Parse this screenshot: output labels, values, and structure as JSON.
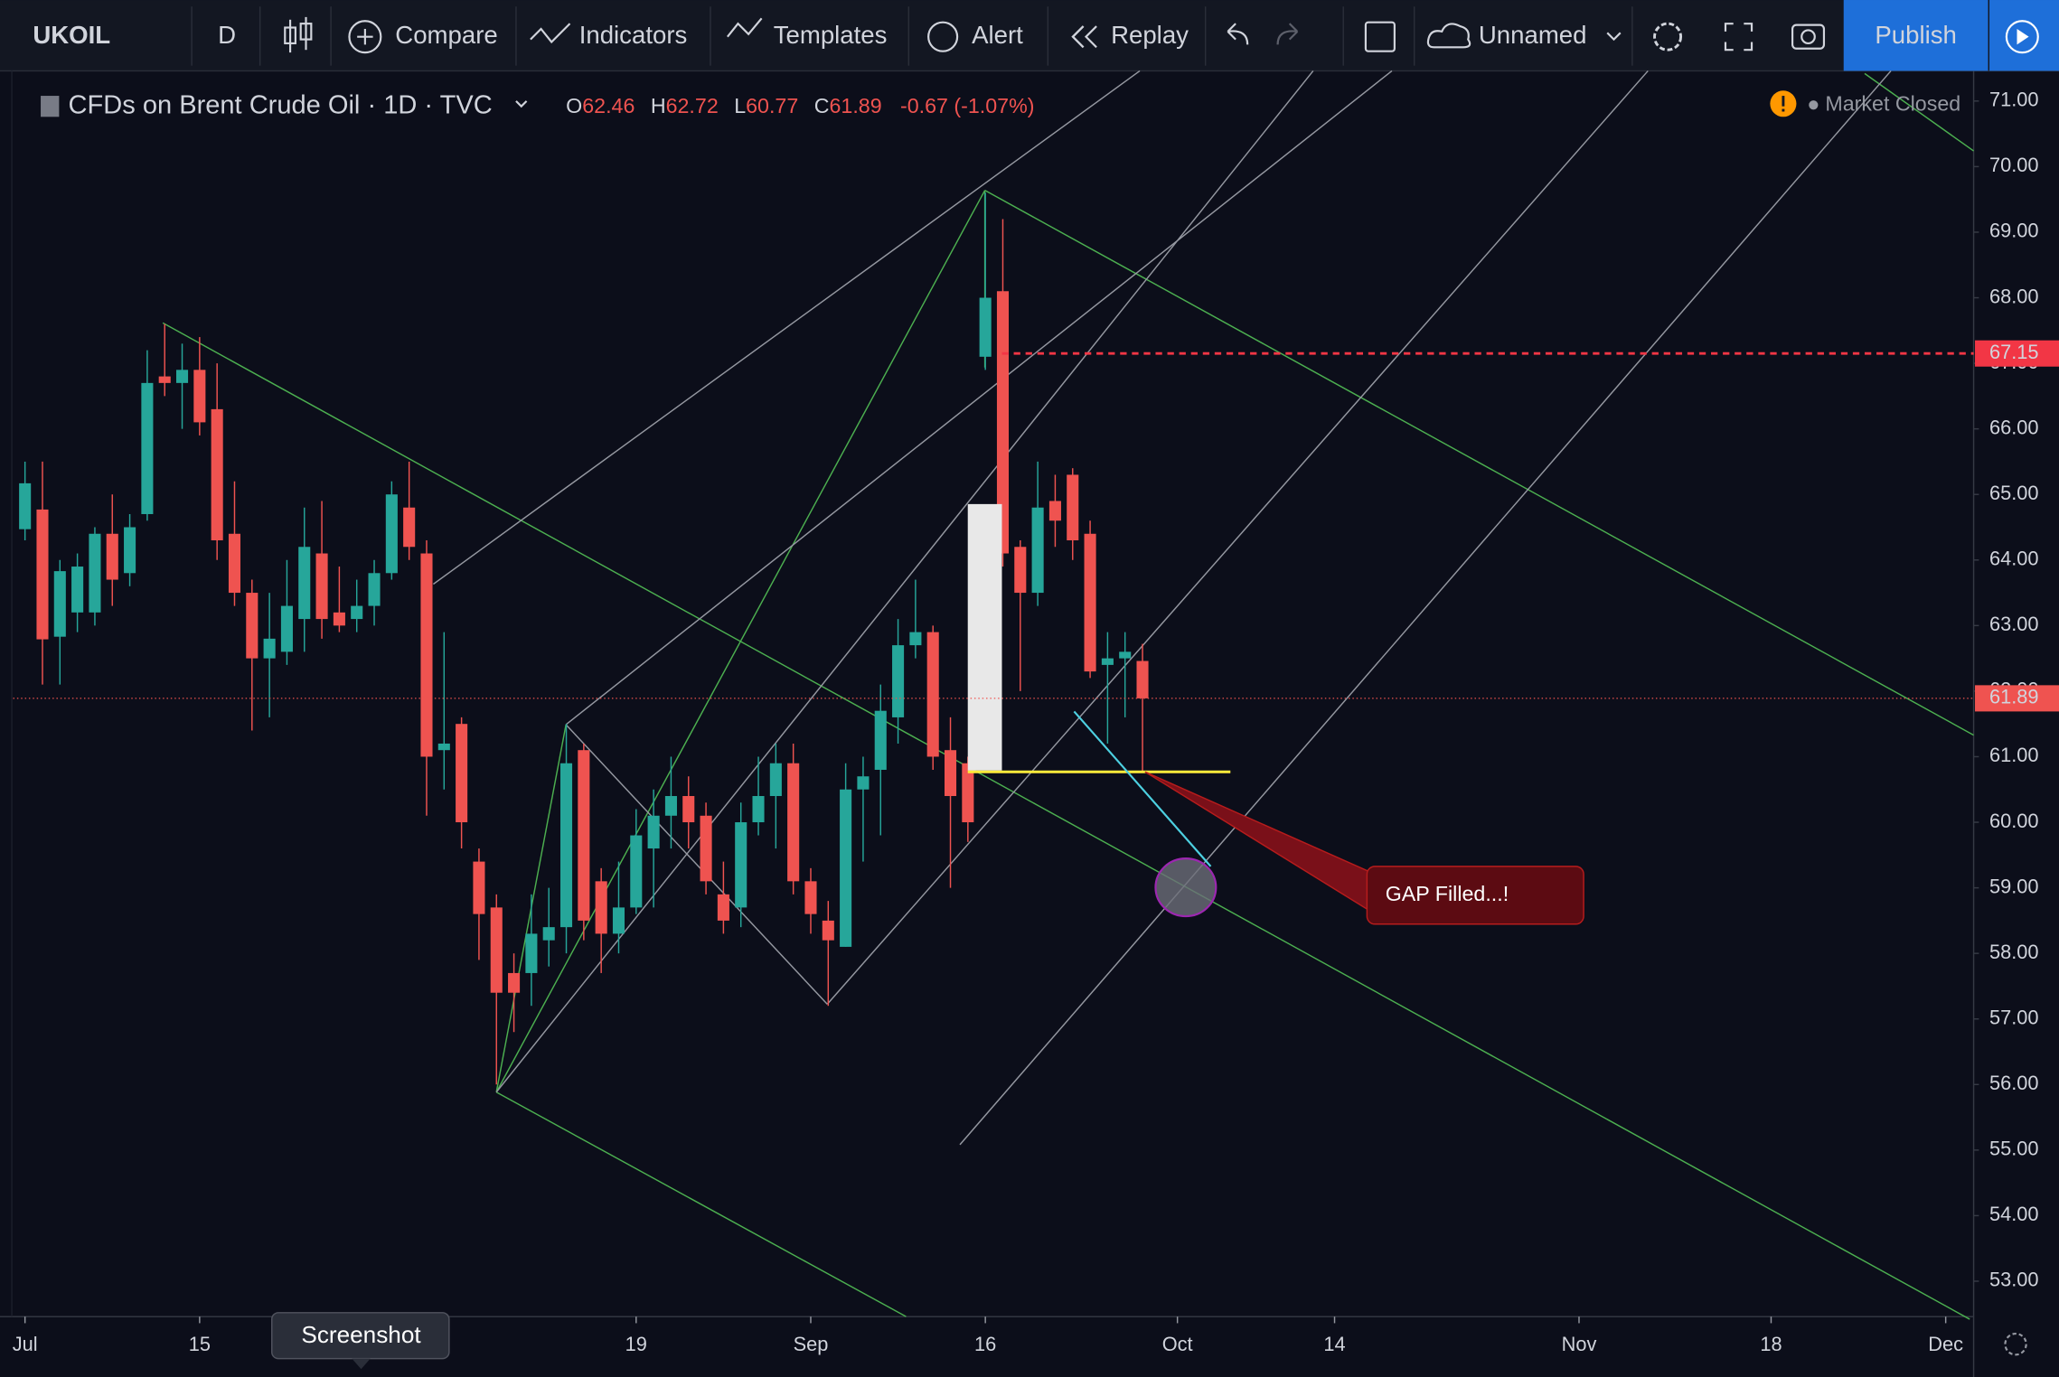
{
  "toolbar": {
    "symbol": "UKOIL",
    "interval": "D",
    "compare": "Compare",
    "indicators": "Indicators",
    "templates": "Templates",
    "alert": "Alert",
    "replay": "Replay",
    "layout": "Unnamed",
    "publish": "Publish"
  },
  "legend": {
    "title": "CFDs on Brent Crude Oil · 1D · TVC",
    "o": "O",
    "h": "H",
    "l": "L",
    "c": "C",
    "change": "-0.67 (-1.07%)"
  },
  "status": "Market Closed",
  "tooltip": "Screenshot",
  "annotation": "GAP Filled...!",
  "chart_data": {
    "type": "candlestick",
    "up_color": "#26a69a",
    "down_color": "#ef5350",
    "open": [
      64.47,
      64.77,
      62.83,
      63.2,
      63.2,
      64.4,
      63.8,
      64.7,
      66.8,
      66.7,
      66.9,
      66.3,
      64.4,
      63.5,
      62.5,
      62.6,
      63.1,
      64.1,
      63.2,
      63.1,
      63.3,
      63.8,
      64.8,
      64.1,
      61.1,
      61.5,
      59.4,
      58.7,
      57.7,
      57.7,
      58.2,
      58.4,
      61.1,
      59.1,
      58.3,
      58.7,
      59.6,
      60.1,
      60.4,
      60.1,
      58.9,
      58.7,
      60.0,
      60.4,
      60.9,
      59.1,
      58.5,
      58.1,
      60.5,
      60.8,
      61.6,
      62.7,
      62.9,
      61.1,
      60.9,
      67.1,
      68.1,
      64.2,
      63.5,
      64.9,
      65.3,
      64.4,
      62.4,
      62.5,
      62.46
    ],
    "high": [
      65.5,
      65.5,
      64.0,
      64.1,
      64.5,
      65.0,
      64.7,
      67.2,
      67.6,
      67.3,
      67.4,
      67.0,
      65.2,
      63.7,
      63.5,
      64.0,
      64.8,
      64.9,
      63.9,
      63.7,
      64.0,
      65.2,
      65.5,
      64.3,
      62.9,
      61.6,
      59.6,
      58.9,
      58.0,
      58.9,
      59.0,
      61.5,
      61.2,
      59.3,
      59.4,
      60.2,
      60.5,
      61.0,
      60.7,
      60.3,
      59.4,
      60.3,
      61.0,
      61.2,
      61.2,
      59.3,
      58.8,
      60.9,
      61.0,
      62.1,
      63.1,
      63.7,
      63.0,
      61.6,
      61.0,
      69.6,
      69.2,
      64.3,
      65.5,
      65.3,
      65.4,
      64.6,
      62.9,
      62.9,
      62.72
    ],
    "low": [
      64.3,
      62.1,
      62.1,
      62.9,
      63.0,
      63.3,
      63.6,
      64.6,
      66.5,
      66.0,
      65.9,
      64.0,
      63.3,
      61.4,
      61.6,
      62.4,
      62.6,
      62.8,
      62.9,
      62.9,
      63.0,
      63.7,
      64.0,
      60.1,
      60.5,
      59.6,
      57.9,
      56.0,
      56.8,
      57.2,
      57.8,
      58.0,
      58.2,
      57.7,
      58.0,
      58.6,
      58.7,
      59.6,
      59.6,
      58.9,
      58.3,
      58.4,
      59.8,
      59.6,
      58.9,
      58.3,
      57.2,
      58.1,
      59.4,
      59.8,
      61.2,
      62.5,
      60.8,
      59.0,
      59.7,
      66.9,
      63.9,
      62.0,
      63.3,
      64.2,
      64.0,
      62.2,
      61.2,
      61.6,
      60.77
    ],
    "close": [
      65.17,
      62.79,
      63.83,
      63.9,
      64.4,
      63.7,
      64.5,
      66.7,
      66.7,
      66.9,
      66.1,
      64.3,
      63.5,
      62.5,
      62.8,
      63.3,
      64.2,
      63.1,
      63.0,
      63.3,
      63.8,
      65.0,
      64.2,
      61.0,
      61.2,
      60.0,
      58.6,
      57.4,
      57.4,
      58.3,
      58.4,
      60.9,
      58.5,
      58.3,
      58.7,
      59.8,
      60.1,
      60.4,
      60.0,
      59.1,
      58.5,
      60.0,
      60.4,
      60.9,
      59.1,
      58.6,
      58.2,
      60.5,
      60.7,
      61.7,
      62.7,
      62.9,
      61.0,
      60.4,
      60.0,
      68.0,
      64.1,
      63.5,
      64.8,
      64.6,
      64.3,
      62.3,
      62.5,
      62.6,
      61.89
    ],
    "xlim": [
      -0.68,
      111.6
    ],
    "xticks": [
      {
        "value": 0,
        "label": "Jul"
      },
      {
        "value": 10,
        "label": "15"
      },
      {
        "value": 35,
        "label": "19"
      },
      {
        "value": 45,
        "label": "Sep"
      },
      {
        "value": 55,
        "label": "16"
      },
      {
        "value": 66,
        "label": "Oct"
      },
      {
        "value": 75,
        "label": "14"
      },
      {
        "value": 89,
        "label": "Nov"
      },
      {
        "value": 100,
        "label": "18"
      },
      {
        "value": 110,
        "label": "Dec"
      }
    ],
    "ylim": [
      52.46,
      71.46
    ],
    "yticks": [
      {
        "value": 71,
        "label": "71.00"
      },
      {
        "value": 70,
        "label": "70.00"
      },
      {
        "value": 69,
        "label": "69.00"
      },
      {
        "value": 68,
        "label": "68.00"
      },
      {
        "value": 67,
        "label": "67.00"
      },
      {
        "value": 66,
        "label": "66.00"
      },
      {
        "value": 65,
        "label": "65.00"
      },
      {
        "value": 64,
        "label": "64.00"
      },
      {
        "value": 63,
        "label": "63.00"
      },
      {
        "value": 62,
        "label": "62.00"
      },
      {
        "value": 61,
        "label": "61.00"
      },
      {
        "value": 60,
        "label": "60.00"
      },
      {
        "value": 59,
        "label": "59.00"
      },
      {
        "value": 58,
        "label": "58.00"
      },
      {
        "value": 57,
        "label": "57.00"
      },
      {
        "value": 56,
        "label": "56.00"
      },
      {
        "value": 55,
        "label": "55.00"
      },
      {
        "value": 54,
        "label": "54.00"
      },
      {
        "value": 53,
        "label": "53.00"
      }
    ],
    "price_line": 67.15,
    "price_line_color": "#f23645"
  }
}
